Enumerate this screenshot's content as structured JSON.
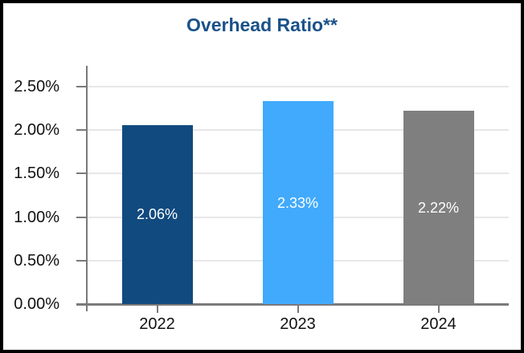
{
  "chart_data": {
    "type": "bar",
    "title": "Overhead Ratio**",
    "categories": [
      "2022",
      "2023",
      "2024"
    ],
    "values": [
      2.06,
      2.33,
      2.22
    ],
    "value_labels": [
      "2.06%",
      "2.33%",
      "2.22%"
    ],
    "bar_colors": [
      "#114A7F",
      "#41AAFC",
      "#7F7F7F"
    ],
    "y_tick_labels": [
      "2.50%",
      "2.00%",
      "1.50%",
      "1.00%",
      "0.50%",
      "0.00%"
    ],
    "y_tick_values": [
      2.5,
      2.0,
      1.5,
      1.0,
      0.5,
      0.0
    ],
    "ylim": [
      0,
      2.74
    ],
    "xlabel": "",
    "ylabel": "",
    "grid": "horizontal",
    "legend": "none",
    "colors": {
      "title": "#1A5289",
      "axis_line": "#7A7A7A",
      "tick": "#7A7A7A",
      "gridline": "#E7E7E7",
      "tick_label": "#111111",
      "value_label": "#FFFFFF",
      "frame_border": "#000000",
      "background": "#FFFFFF"
    }
  }
}
